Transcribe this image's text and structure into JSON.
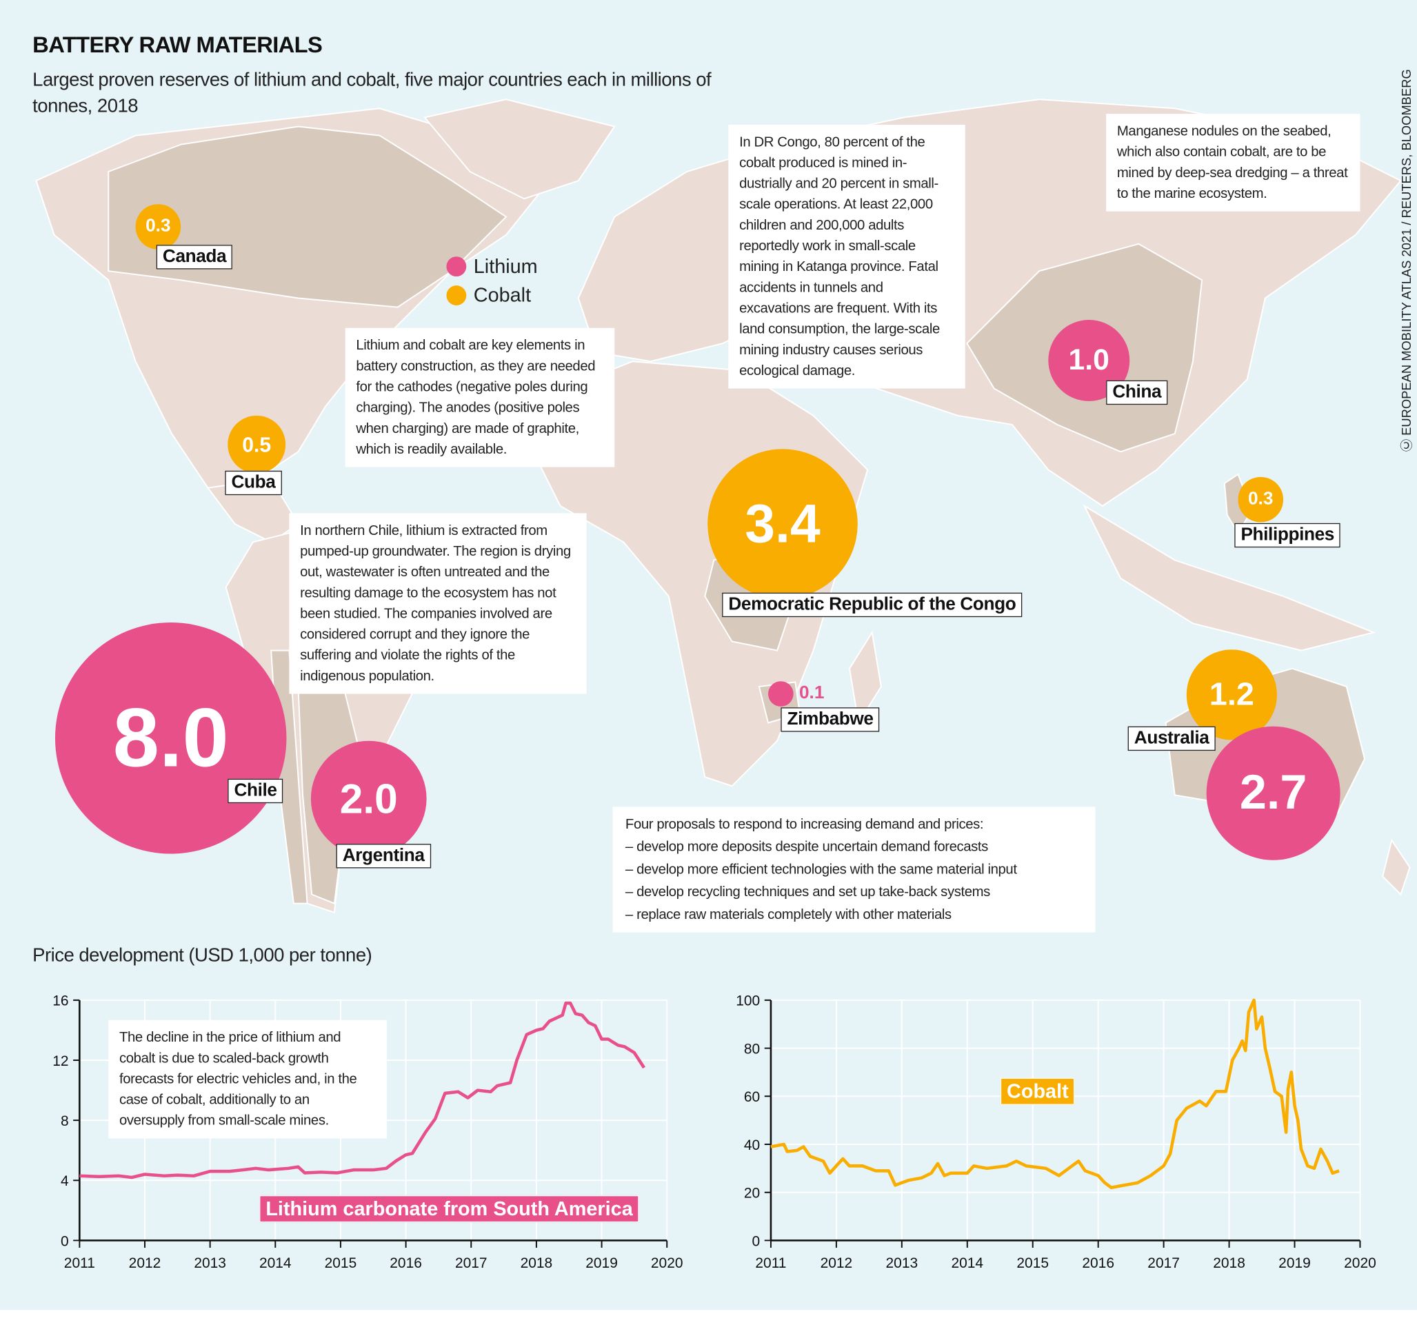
{
  "header": {
    "title": "BATTERY RAW MATERIALS",
    "subtitle": "Largest proven reserves of lithium and cobalt, five major countries each in millions of tonnes, 2018",
    "source": "EUROPEAN MOBILITY ATLAS 2021 / REUTERS, BLOOMBERG",
    "license_icon": "creative-commons-icon"
  },
  "colors": {
    "lithium": "#e8508a",
    "cobalt": "#f8ad00",
    "ocean": "#e6f4f8",
    "land": "#ecdcd6",
    "highlight": "#d8c9bd"
  },
  "legend": [
    {
      "label": "Lithium",
      "color": "#e8508a"
    },
    {
      "label": "Cobalt",
      "color": "#f8ad00"
    }
  ],
  "reserves": [
    {
      "country": "Canada",
      "material": "Cobalt",
      "value": "0.3"
    },
    {
      "country": "Cuba",
      "material": "Cobalt",
      "value": "0.5"
    },
    {
      "country": "Chile",
      "material": "Lithium",
      "value": "8.0"
    },
    {
      "country": "Argentina",
      "material": "Lithium",
      "value": "2.0"
    },
    {
      "country": "Democratic Republic of the Congo",
      "material": "Cobalt",
      "value": "3.4"
    },
    {
      "country": "Zimbabwe",
      "material": "Lithium",
      "value": "0.1"
    },
    {
      "country": "China",
      "material": "Lithium",
      "value": "1.0"
    },
    {
      "country": "Philippines",
      "material": "Cobalt",
      "value": "0.3"
    },
    {
      "country": "Australia",
      "material": "Cobalt",
      "value": "1.2"
    },
    {
      "country": "Australia",
      "material": "Lithium",
      "value": "2.7"
    }
  ],
  "notes": {
    "key_elements": "Lithium and cobalt are key elements in battery construction, as they are needed for the cathodes (negative poles during charging). The anodes (positive poles when charging) are made of graphite, which is readily available.",
    "chile": "In northern Chile, lithium is extracted from pumped-up groundwater. The region is drying out, wastewater is often untreated and the resulting damage to the ecosystem has not been studied. The companies involved are considered corrupt and they ignore the suffering and violate the rights of the indigenous population.",
    "congo": "In DR Congo, 80 percent of the cobalt produced is mined in-dustrially and 20 percent in small-scale operations. At least 22,000 children and 200,000 adults reportedly work in small-scale mining in Katanga province. Fatal accidents in tunnels and excavations are frequent. With its land consumption, the large-scale mining industry causes serious ecological damage.",
    "seabed": "Manganese nodules on the seabed, which also contain cobalt, are to be mined by deep-sea dredging – a threat to the marine ecosystem.",
    "proposals_title": "Four proposals to respond to increasing demand and prices:",
    "proposals": [
      "– develop more deposits despite uncertain demand forecasts",
      "– develop more efficient technologies with the same material input",
      "– develop recycling techniques and set up take-back systems",
      "– replace raw materials completely with other materials"
    ]
  },
  "price_title": "Price development (USD 1,000 per tonne)",
  "chart_data": [
    {
      "type": "line",
      "series_label": "Lithium carbonate from South America",
      "color": "#e8508a",
      "xlim": [
        2011,
        2020
      ],
      "ylim": [
        0,
        16
      ],
      "yticks": [
        0,
        4,
        8,
        12,
        16
      ],
      "xticks": [
        2011,
        2012,
        2013,
        2014,
        2015,
        2016,
        2017,
        2018,
        2019,
        2020
      ],
      "grid": true,
      "annotation": "The decline in the price of lithium and cobalt is due to scaled-back growth forecasts for electric vehicles and, in the case of cobalt, additionally to an oversupply from small-scale mines.",
      "x": [
        2011,
        2011.3,
        2011.6,
        2011.8,
        2012,
        2012.3,
        2012.5,
        2012.75,
        2013,
        2013.3,
        2013.5,
        2013.7,
        2013.9,
        2014.2,
        2014.35,
        2014.45,
        2014.7,
        2014.95,
        2015.2,
        2015.5,
        2015.7,
        2015.85,
        2016,
        2016.1,
        2016.3,
        2016.45,
        2016.6,
        2016.8,
        2016.95,
        2017.1,
        2017.3,
        2017.4,
        2017.6,
        2017.7,
        2017.85,
        2018,
        2018.1,
        2018.2,
        2018.4,
        2018.45,
        2018.52,
        2018.6,
        2018.7,
        2018.8,
        2018.9,
        2019,
        2019.1,
        2019.25,
        2019.35,
        2019.5,
        2019.65
      ],
      "y": [
        4.3,
        4.25,
        4.3,
        4.2,
        4.4,
        4.3,
        4.35,
        4.3,
        4.6,
        4.6,
        4.7,
        4.8,
        4.7,
        4.8,
        4.9,
        4.5,
        4.55,
        4.5,
        4.7,
        4.7,
        4.8,
        5.3,
        5.7,
        5.8,
        7.2,
        8.1,
        9.8,
        9.9,
        9.5,
        10.0,
        9.9,
        10.3,
        10.5,
        12.0,
        13.7,
        14.0,
        14.1,
        14.6,
        15.0,
        15.8,
        15.8,
        15.1,
        15.0,
        14.5,
        14.3,
        13.4,
        13.4,
        13.0,
        12.9,
        12.5,
        11.5
      ]
    },
    {
      "type": "line",
      "series_label": "Cobalt",
      "color": "#f8ad00",
      "xlim": [
        2011,
        2020
      ],
      "ylim": [
        0,
        100
      ],
      "yticks": [
        0,
        20,
        40,
        60,
        80,
        100
      ],
      "xticks": [
        2011,
        2012,
        2013,
        2014,
        2015,
        2016,
        2017,
        2018,
        2019,
        2020
      ],
      "grid": true,
      "x": [
        2011,
        2011.2,
        2011.25,
        2011.4,
        2011.5,
        2011.6,
        2011.8,
        2011.9,
        2012,
        2012.1,
        2012.2,
        2012.4,
        2012.6,
        2012.8,
        2012.9,
        2013.1,
        2013.3,
        2013.45,
        2013.55,
        2013.65,
        2013.75,
        2014,
        2014.1,
        2014.3,
        2014.6,
        2014.75,
        2014.9,
        2015.2,
        2015.4,
        2015.6,
        2015.7,
        2015.8,
        2016,
        2016.1,
        2016.2,
        2016.4,
        2016.6,
        2016.8,
        2017,
        2017.1,
        2017.2,
        2017.35,
        2017.55,
        2017.65,
        2017.8,
        2017.95,
        2018.05,
        2018.15,
        2018.2,
        2018.25,
        2018.3,
        2018.38,
        2018.42,
        2018.5,
        2018.55,
        2018.62,
        2018.7,
        2018.8,
        2018.87,
        2018.9,
        2018.95,
        2019,
        2019.05,
        2019.1,
        2019.2,
        2019.3,
        2019.4,
        2019.5,
        2019.58,
        2019.68
      ],
      "y": [
        39,
        40,
        37,
        37.5,
        39,
        35,
        33,
        28,
        31,
        34,
        31,
        31,
        29,
        29,
        23,
        25,
        26,
        28,
        32,
        27,
        28,
        28,
        31,
        30,
        31,
        33,
        31,
        30,
        27,
        31,
        33,
        29,
        27,
        24,
        22,
        23,
        24,
        27,
        31,
        36,
        50,
        55,
        58,
        56,
        62,
        62,
        75,
        80,
        83,
        79,
        95,
        100,
        88,
        93,
        80,
        72,
        62,
        60,
        45,
        63,
        70,
        56,
        50,
        38,
        31,
        30,
        38,
        33,
        28,
        29
      ]
    }
  ]
}
